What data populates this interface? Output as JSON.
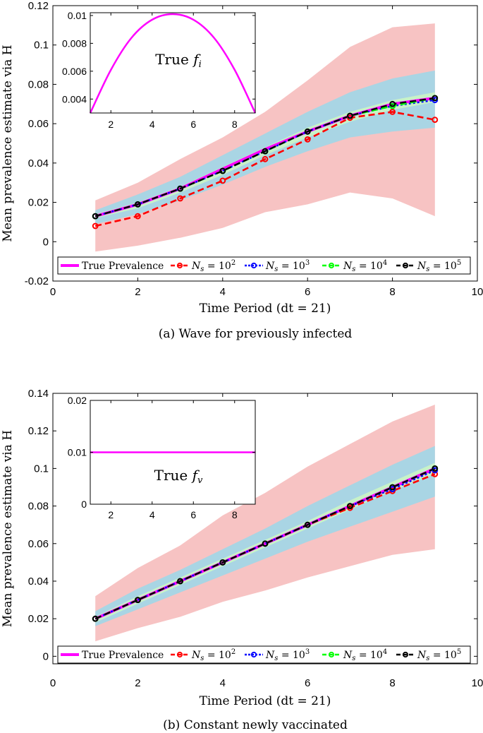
{
  "chart_data": [
    {
      "type": "line",
      "panel": "a",
      "caption": "(a) Wave for previously infected",
      "xlabel": "Time Period (dt = 21)",
      "ylabel": "Mean prevalence estimate via H",
      "xlim": [
        0,
        10
      ],
      "ylim": [
        -0.02,
        0.12
      ],
      "xticks": [
        "0",
        "2",
        "4",
        "6",
        "8",
        "10"
      ],
      "yticks": [
        "-0.02",
        "0",
        "0.02",
        "0.04",
        "0.06",
        "0.08",
        "0.1",
        "0.12"
      ],
      "x": [
        1,
        2,
        3,
        4,
        5,
        6,
        7,
        8,
        9
      ],
      "bands": [
        {
          "name": "N_s = 10^2 band",
          "color": "#f7c3c3",
          "lower": [
            -0.005,
            -0.002,
            0.002,
            0.007,
            0.015,
            0.019,
            0.025,
            0.022,
            0.013
          ],
          "upper": [
            0.021,
            0.03,
            0.042,
            0.053,
            0.066,
            0.082,
            0.099,
            0.109,
            0.111
          ]
        },
        {
          "name": "N_s = 10^3 band",
          "color": "#a9d5e4",
          "lower": [
            0.009,
            0.014,
            0.021,
            0.029,
            0.038,
            0.046,
            0.053,
            0.056,
            0.058
          ],
          "upper": [
            0.016,
            0.024,
            0.033,
            0.044,
            0.055,
            0.066,
            0.076,
            0.083,
            0.087
          ]
        },
        {
          "name": "N_s = 10^4 band",
          "color": "#c8f2c8",
          "lower": [
            0.012,
            0.017,
            0.025,
            0.034,
            0.044,
            0.053,
            0.061,
            0.067,
            0.071
          ],
          "upper": [
            0.014,
            0.02,
            0.028,
            0.038,
            0.048,
            0.058,
            0.066,
            0.072,
            0.076
          ]
        }
      ],
      "series": [
        {
          "name": "True Prevalence",
          "color": "#ff00ff",
          "style": "solid",
          "marker": "none",
          "values": [
            0.013,
            0.019,
            0.027,
            0.037,
            0.047,
            0.056,
            0.064,
            0.07,
            0.073
          ]
        },
        {
          "name": "N_s = 10^2",
          "color": "#ff0000",
          "style": "dashed",
          "marker": "o",
          "values": [
            0.008,
            0.013,
            0.022,
            0.031,
            0.042,
            0.052,
            0.063,
            0.066,
            0.062
          ]
        },
        {
          "name": "N_s = 10^3",
          "color": "#0000ff",
          "style": "dotted",
          "marker": "o",
          "values": [
            0.013,
            0.019,
            0.027,
            0.036,
            0.046,
            0.056,
            0.064,
            0.069,
            0.072
          ]
        },
        {
          "name": "N_s = 10^4",
          "color": "#00ff00",
          "style": "dashed",
          "marker": "o",
          "values": [
            0.013,
            0.019,
            0.027,
            0.036,
            0.046,
            0.056,
            0.064,
            0.069,
            0.073
          ]
        },
        {
          "name": "N_s = 10^5",
          "color": "#000000",
          "style": "dashed",
          "marker": "o",
          "values": [
            0.013,
            0.019,
            0.027,
            0.036,
            0.046,
            0.056,
            0.064,
            0.07,
            0.073
          ]
        }
      ],
      "legend": {
        "placement": "bottom",
        "entries": [
          {
            "label": "True Prevalence"
          },
          {
            "label": "N_s = 10^2",
            "base": "N",
            "sub": "s",
            "rest": " = 10",
            "sup": "2"
          },
          {
            "label": "N_s = 10^3",
            "base": "N",
            "sub": "s",
            "rest": " = 10",
            "sup": "3"
          },
          {
            "label": "N_s = 10^4",
            "base": "N",
            "sub": "s",
            "rest": " = 10",
            "sup": "4"
          },
          {
            "label": "N_s = 10^5",
            "base": "N",
            "sub": "s",
            "rest": " = 10",
            "sup": "5"
          }
        ]
      },
      "inset": {
        "title": "True f_i",
        "title_main": "True ",
        "title_var": "f",
        "title_sub": "i",
        "xlim": [
          1,
          9
        ],
        "ylim": [
          0.003,
          0.0102
        ],
        "xticks": [
          "2",
          "4",
          "6",
          "8"
        ],
        "yticks": [
          "0.004",
          "0.006",
          "0.008",
          "0.01"
        ],
        "x": [
          1,
          2,
          3,
          4,
          5,
          6,
          7,
          8,
          9
        ],
        "values": [
          0.003,
          0.0061,
          0.0084,
          0.0097,
          0.0101,
          0.0097,
          0.0084,
          0.0061,
          0.003
        ],
        "color": "#ff00ff"
      }
    },
    {
      "type": "line",
      "panel": "b",
      "caption": "(b) Constant newly vaccinated",
      "xlabel": "Time Period (dt = 21)",
      "ylabel": "Mean prevalence estimate via H",
      "xlim": [
        0,
        10
      ],
      "ylim": [
        -0.004,
        0.14
      ],
      "xticks": [
        "0",
        "2",
        "4",
        "6",
        "8",
        "10"
      ],
      "yticks": [
        "0",
        "0.02",
        "0.04",
        "0.06",
        "0.08",
        "0.1",
        "0.12",
        "0.14"
      ],
      "x": [
        1,
        2,
        3,
        4,
        5,
        6,
        7,
        8,
        9
      ],
      "bands": [
        {
          "name": "N_s = 10^2 band",
          "color": "#f7c3c3",
          "lower": [
            0.008,
            0.015,
            0.021,
            0.029,
            0.035,
            0.042,
            0.048,
            0.054,
            0.057
          ],
          "upper": [
            0.032,
            0.047,
            0.059,
            0.075,
            0.087,
            0.101,
            0.113,
            0.125,
            0.134
          ]
        },
        {
          "name": "N_s = 10^3 band",
          "color": "#a9d5e4",
          "lower": [
            0.016,
            0.025,
            0.034,
            0.043,
            0.052,
            0.061,
            0.069,
            0.077,
            0.085
          ],
          "upper": [
            0.024,
            0.036,
            0.046,
            0.057,
            0.068,
            0.08,
            0.091,
            0.102,
            0.112
          ]
        },
        {
          "name": "N_s = 10^4 band",
          "color": "#c8f2c8",
          "lower": [
            0.018,
            0.028,
            0.038,
            0.048,
            0.058,
            0.068,
            0.078,
            0.088,
            0.097
          ],
          "upper": [
            0.021,
            0.032,
            0.042,
            0.052,
            0.062,
            0.072,
            0.083,
            0.093,
            0.103
          ]
        }
      ],
      "series": [
        {
          "name": "True Prevalence",
          "color": "#ff00ff",
          "style": "solid",
          "marker": "none",
          "values": [
            0.02,
            0.03,
            0.04,
            0.05,
            0.06,
            0.07,
            0.08,
            0.09,
            0.1
          ]
        },
        {
          "name": "N_s = 10^2",
          "color": "#ff0000",
          "style": "dashed",
          "marker": "o",
          "values": [
            0.02,
            0.03,
            0.04,
            0.05,
            0.06,
            0.07,
            0.079,
            0.088,
            0.097
          ]
        },
        {
          "name": "N_s = 10^3",
          "color": "#0000ff",
          "style": "dotted",
          "marker": "o",
          "values": [
            0.02,
            0.03,
            0.04,
            0.05,
            0.06,
            0.07,
            0.08,
            0.089,
            0.099
          ]
        },
        {
          "name": "N_s = 10^4",
          "color": "#00ff00",
          "style": "dashed",
          "marker": "o",
          "values": [
            0.02,
            0.03,
            0.04,
            0.05,
            0.06,
            0.07,
            0.08,
            0.09,
            0.1
          ]
        },
        {
          "name": "N_s = 10^5",
          "color": "#000000",
          "style": "dashed",
          "marker": "o",
          "values": [
            0.02,
            0.03,
            0.04,
            0.05,
            0.06,
            0.07,
            0.08,
            0.09,
            0.1
          ]
        }
      ],
      "legend": {
        "placement": "bottom",
        "entries": [
          {
            "label": "True Prevalence"
          },
          {
            "label": "N_s = 10^2",
            "base": "N",
            "sub": "s",
            "rest": " = 10",
            "sup": "2"
          },
          {
            "label": "N_s = 10^3",
            "base": "N",
            "sub": "s",
            "rest": " = 10",
            "sup": "3"
          },
          {
            "label": "N_s = 10^4",
            "base": "N",
            "sub": "s",
            "rest": " = 10",
            "sup": "4"
          },
          {
            "label": "N_s = 10^5",
            "base": "N",
            "sub": "s",
            "rest": " = 10",
            "sup": "5"
          }
        ]
      },
      "inset": {
        "title": "True f_v",
        "title_main": "True ",
        "title_var": "f",
        "title_sub": "v",
        "xlim": [
          1,
          9
        ],
        "ylim": [
          0,
          0.02
        ],
        "xticks": [
          "2",
          "4",
          "6",
          "8"
        ],
        "yticks": [
          "0",
          "0.01",
          "0.02"
        ],
        "x": [
          1,
          9
        ],
        "values": [
          0.01,
          0.01
        ],
        "color": "#ff00ff"
      }
    }
  ]
}
